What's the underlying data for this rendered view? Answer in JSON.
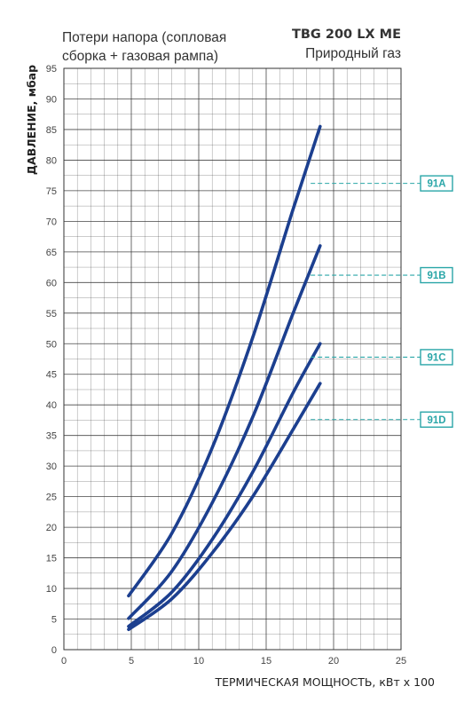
{
  "header": {
    "subtitle_lines": [
      "Потери напора (сопловая",
      "сборка + газовая рампа)"
    ],
    "model": "TBG 200 LX ME",
    "fuel": "Природный газ"
  },
  "colors": {
    "curve": "#1c3f8f",
    "callout": "#2aa6a8",
    "grid": "#333333"
  },
  "chart_data": {
    "type": "line",
    "xlabel": "ТЕРМИЧЕСКАЯ МОЩНОСТЬ, кВт х 100",
    "ylabel": "ДАВЛЕНИЕ, мбар",
    "xlim": [
      0,
      25
    ],
    "ylim": [
      0,
      95
    ],
    "x_ticks": [
      0,
      5,
      10,
      15,
      20,
      25
    ],
    "y_ticks": [
      0,
      5,
      10,
      15,
      20,
      25,
      30,
      35,
      40,
      45,
      50,
      55,
      60,
      65,
      70,
      75,
      80,
      85,
      90,
      95
    ],
    "x_minor_step": 1,
    "y_minor_step": 2.5,
    "grid": true,
    "series": [
      {
        "name": "91A",
        "x": [
          4.8,
          8,
          11,
          14,
          17,
          19
        ],
        "y": [
          8.8,
          19,
          33,
          51,
          72,
          85.5
        ]
      },
      {
        "name": "91B",
        "x": [
          4.8,
          8,
          11,
          14,
          17,
          19
        ],
        "y": [
          5.1,
          12.8,
          24,
          38,
          55,
          66
        ]
      },
      {
        "name": "91C",
        "x": [
          4.8,
          8,
          11,
          14,
          17,
          19
        ],
        "y": [
          3.8,
          9.4,
          18,
          29,
          42,
          50
        ]
      },
      {
        "name": "91D",
        "x": [
          4.8,
          8,
          11,
          14,
          17,
          19
        ],
        "y": [
          3.3,
          8.3,
          15.8,
          25,
          36,
          43.5
        ]
      }
    ],
    "callouts": [
      {
        "label": "91A",
        "y": 76.2
      },
      {
        "label": "91B",
        "y": 61.2
      },
      {
        "label": "91C",
        "y": 47.8
      },
      {
        "label": "91D",
        "y": 37.6
      }
    ]
  }
}
